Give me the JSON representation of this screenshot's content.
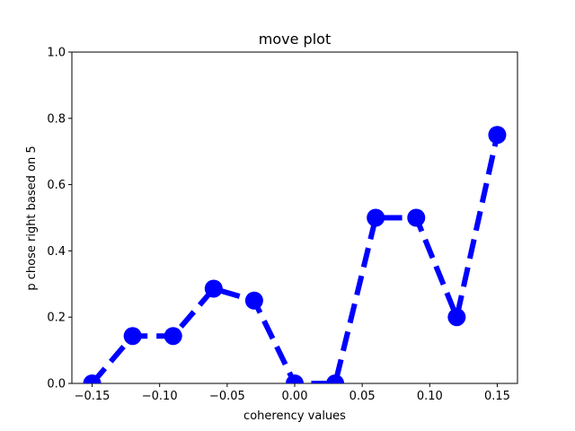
{
  "chart_data": {
    "type": "line",
    "title": "move plot",
    "xlabel": "coherency values",
    "ylabel": "p chose right based on 5",
    "xlim": [
      -0.165,
      0.165
    ],
    "ylim": [
      0.0,
      1.0
    ],
    "xticks": [
      -0.15,
      -0.1,
      -0.05,
      0.0,
      0.05,
      0.1,
      0.15
    ],
    "xtick_labels": [
      "−0.15",
      "−0.10",
      "−0.05",
      "0.00",
      "0.05",
      "0.10",
      "0.15"
    ],
    "yticks": [
      0.0,
      0.2,
      0.4,
      0.6,
      0.8,
      1.0
    ],
    "ytick_labels": [
      "0.0",
      "0.2",
      "0.4",
      "0.6",
      "0.8",
      "1.0"
    ],
    "grid": false,
    "series": [
      {
        "color": "#0000ff",
        "line_style": "dashed",
        "marker": "circle",
        "x": [
          -0.15,
          -0.12,
          -0.09,
          -0.06,
          -0.03,
          0.0,
          0.03,
          0.06,
          0.09,
          0.12,
          0.15
        ],
        "y": [
          0.0,
          0.143,
          0.143,
          0.286,
          0.25,
          0.0,
          0.0,
          0.5,
          0.5,
          0.2,
          0.75
        ]
      }
    ]
  }
}
